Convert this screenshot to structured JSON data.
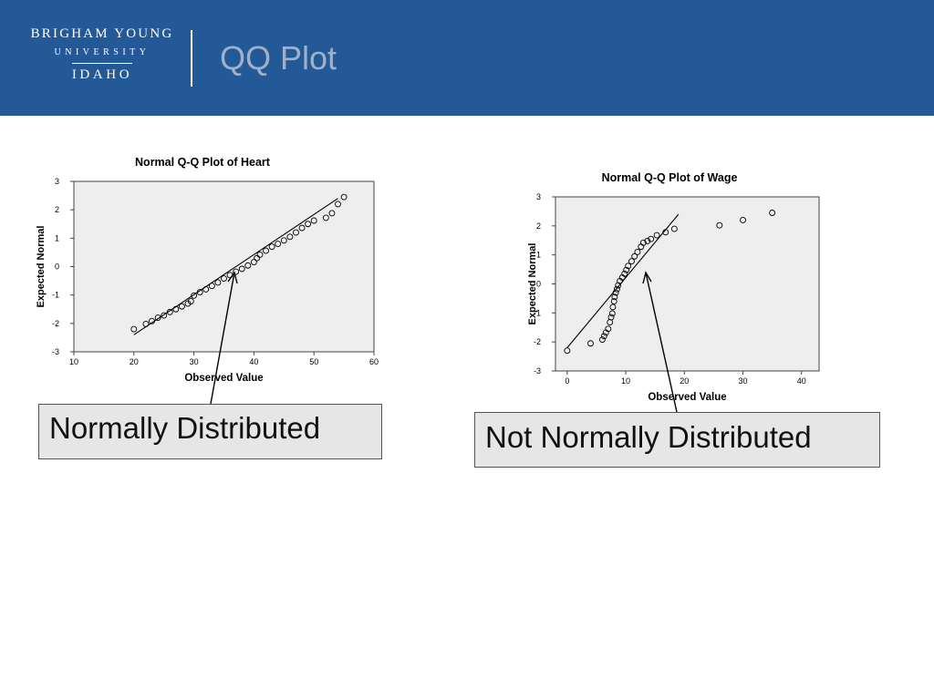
{
  "header": {
    "logo_line1": "BRIGHAM YOUNG",
    "logo_line2": "UNIVERSITY",
    "logo_line3": "IDAHO",
    "slide_title": "QQ Plot",
    "background_color": "#245997"
  },
  "annotations": {
    "left_label": "Normally Distributed",
    "right_label": "Not Normally Distributed"
  },
  "chart_data": [
    {
      "type": "scatter",
      "title": "Normal Q-Q Plot of Heart",
      "xlabel": "Observed Value",
      "ylabel": "Expected Normal",
      "xlim": [
        10,
        60
      ],
      "ylim": [
        -3,
        3
      ],
      "x_ticks": [
        "10",
        "20",
        "30",
        "40",
        "50",
        "60"
      ],
      "y_ticks": [
        "3",
        "2",
        "1",
        "0",
        "-1",
        "-2",
        "-3"
      ],
      "reference_line": [
        [
          20,
          -2.4
        ],
        [
          54,
          2.4
        ]
      ],
      "points": [
        [
          20,
          -2.2
        ],
        [
          22,
          -2.02
        ],
        [
          23,
          -1.92
        ],
        [
          24,
          -1.8
        ],
        [
          25,
          -1.72
        ],
        [
          26,
          -1.6
        ],
        [
          27,
          -1.5
        ],
        [
          28,
          -1.4
        ],
        [
          29,
          -1.3
        ],
        [
          29.5,
          -1.22
        ],
        [
          30,
          -1.02
        ],
        [
          31,
          -0.9
        ],
        [
          32,
          -0.8
        ],
        [
          33,
          -0.68
        ],
        [
          34,
          -0.56
        ],
        [
          35,
          -0.42
        ],
        [
          36,
          -0.3
        ],
        [
          37,
          -0.18
        ],
        [
          38,
          -0.08
        ],
        [
          39,
          0.04
        ],
        [
          40,
          0.16
        ],
        [
          40.5,
          0.3
        ],
        [
          41,
          0.42
        ],
        [
          42,
          0.56
        ],
        [
          43,
          0.7
        ],
        [
          44,
          0.8
        ],
        [
          45,
          0.92
        ],
        [
          46,
          1.05
        ],
        [
          47,
          1.2
        ],
        [
          48,
          1.36
        ],
        [
          49,
          1.5
        ],
        [
          50,
          1.62
        ],
        [
          52,
          1.72
        ],
        [
          53,
          1.88
        ],
        [
          54,
          2.2
        ],
        [
          55,
          2.45
        ]
      ]
    },
    {
      "type": "scatter",
      "title": "Normal Q-Q Plot of Wage",
      "xlabel": "Observed Value",
      "ylabel": "Expected Normal",
      "xlim": [
        -2,
        43
      ],
      "ylim": [
        -3,
        3
      ],
      "x_ticks": [
        "0",
        "10",
        "20",
        "30",
        "40"
      ],
      "y_ticks": [
        "3",
        "2",
        "1",
        "0",
        "-1",
        "-2",
        "-3"
      ],
      "reference_line": [
        [
          0,
          -2.2
        ],
        [
          19,
          2.4
        ]
      ],
      "points": [
        [
          0,
          -2.3
        ],
        [
          4,
          -2.05
        ],
        [
          6,
          -1.92
        ],
        [
          6.3,
          -1.8
        ],
        [
          6.6,
          -1.68
        ],
        [
          7,
          -1.55
        ],
        [
          7.3,
          -1.32
        ],
        [
          7.5,
          -1.15
        ],
        [
          7.7,
          -1.02
        ],
        [
          7.8,
          -0.8
        ],
        [
          8,
          -0.6
        ],
        [
          8.1,
          -0.45
        ],
        [
          8.3,
          -0.3
        ],
        [
          8.5,
          -0.18
        ],
        [
          8.7,
          -0.05
        ],
        [
          9,
          0.1
        ],
        [
          9.4,
          0.22
        ],
        [
          9.8,
          0.35
        ],
        [
          10.1,
          0.48
        ],
        [
          10.4,
          0.62
        ],
        [
          11,
          0.78
        ],
        [
          11.5,
          0.95
        ],
        [
          12,
          1.1
        ],
        [
          12.6,
          1.28
        ],
        [
          13,
          1.42
        ],
        [
          13.7,
          1.48
        ],
        [
          14.3,
          1.55
        ],
        [
          15.3,
          1.68
        ],
        [
          16.8,
          1.78
        ],
        [
          18.3,
          1.9
        ],
        [
          26,
          2.02
        ],
        [
          30,
          2.2
        ],
        [
          35,
          2.45
        ]
      ]
    }
  ]
}
